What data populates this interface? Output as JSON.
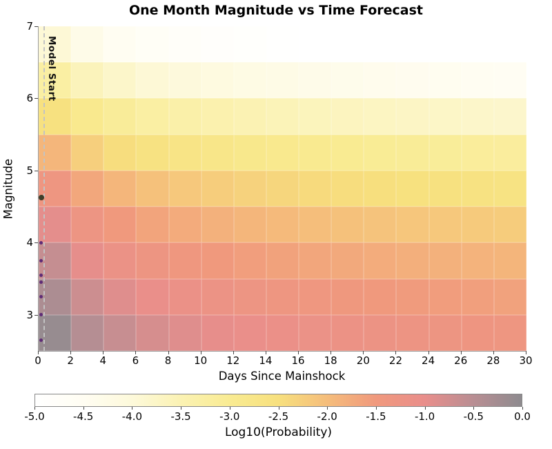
{
  "chart_data": {
    "type": "heatmap",
    "title": "One Month Magnitude vs Time Forecast",
    "xlabel": "Days Since Mainshock",
    "ylabel": "Magnitude",
    "colorbar_label": "Log10(Probability)",
    "x_range": [
      0,
      30
    ],
    "y_range": [
      2.5,
      7
    ],
    "x_tick_labels": [
      "0",
      "2",
      "4",
      "6",
      "8",
      "10",
      "12",
      "14",
      "16",
      "18",
      "20",
      "22",
      "24",
      "26",
      "28",
      "30"
    ],
    "y_tick_labels": [
      "3",
      "4",
      "5",
      "6",
      "7"
    ],
    "y_tick_values": [
      3,
      4,
      5,
      6,
      7
    ],
    "day_edges": [
      0,
      2,
      4,
      6,
      8,
      10,
      12,
      14,
      16,
      18,
      20,
      22,
      24,
      26,
      28,
      30
    ],
    "magnitude_edges": [
      2.5,
      3.0,
      3.5,
      4.0,
      4.5,
      5.0,
      5.5,
      6.0,
      6.5,
      7.0
    ],
    "rows_bottom_to_top": [
      {
        "mag_range": [
          2.5,
          3.0
        ],
        "values": [
          -0.1,
          -0.45,
          -0.65,
          -0.8,
          -0.9,
          -0.98,
          -1.05,
          -1.11,
          -1.16,
          -1.2,
          -1.24,
          -1.28,
          -1.31,
          -1.34,
          -1.37
        ]
      },
      {
        "mag_range": [
          3.0,
          3.5
        ],
        "values": [
          -0.35,
          -0.7,
          -0.9,
          -1.05,
          -1.15,
          -1.23,
          -1.3,
          -1.36,
          -1.41,
          -1.45,
          -1.49,
          -1.53,
          -1.56,
          -1.59,
          -1.62
        ]
      },
      {
        "mag_range": [
          3.5,
          4.0
        ],
        "values": [
          -0.62,
          -0.97,
          -1.17,
          -1.32,
          -1.42,
          -1.5,
          -1.57,
          -1.63,
          -1.68,
          -1.72,
          -1.76,
          -1.8,
          -1.83,
          -1.86,
          -1.89
        ]
      },
      {
        "mag_range": [
          4.0,
          4.5
        ],
        "values": [
          -0.95,
          -1.3,
          -1.5,
          -1.65,
          -1.75,
          -1.83,
          -1.9,
          -1.96,
          -2.01,
          -2.05,
          -2.09,
          -2.13,
          -2.16,
          -2.19,
          -2.22
        ]
      },
      {
        "mag_range": [
          4.5,
          5.0
        ],
        "values": [
          -1.35,
          -1.7,
          -1.9,
          -2.05,
          -2.15,
          -2.23,
          -2.3,
          -2.36,
          -2.41,
          -2.45,
          -2.49,
          -2.53,
          -2.56,
          -2.59,
          -2.62
        ]
      },
      {
        "mag_range": [
          5.0,
          5.5
        ],
        "values": [
          -1.9,
          -2.25,
          -2.45,
          -2.6,
          -2.7,
          -2.78,
          -2.85,
          -2.91,
          -2.96,
          -3.0,
          -3.04,
          -3.08,
          -3.11,
          -3.14,
          -3.17
        ]
      },
      {
        "mag_range": [
          5.5,
          6.0
        ],
        "values": [
          -2.55,
          -2.9,
          -3.1,
          -3.25,
          -3.35,
          -3.43,
          -3.5,
          -3.56,
          -3.61,
          -3.65,
          -3.69,
          -3.73,
          -3.76,
          -3.79,
          -3.82
        ]
      },
      {
        "mag_range": [
          6.0,
          6.5
        ],
        "values": [
          -3.25,
          -3.6,
          -3.8,
          -3.95,
          -4.05,
          -4.13,
          -4.2,
          -4.26,
          -4.31,
          -4.35,
          -4.39,
          -4.43,
          -4.46,
          -4.49,
          -4.52
        ]
      },
      {
        "mag_range": [
          6.5,
          7.0
        ],
        "values": [
          -3.95,
          -4.3,
          -4.5,
          -4.65,
          -4.75,
          -4.83,
          -4.9,
          -4.96,
          -5.0,
          -5.0,
          -5.0,
          -5.0,
          -5.0,
          -5.0,
          -5.0
        ]
      }
    ],
    "colormap": [
      {
        "value": -5.0,
        "color": "#ffffff"
      },
      {
        "value": -4.5,
        "color": "#fffdf2"
      },
      {
        "value": -4.0,
        "color": "#fdf9da"
      },
      {
        "value": -3.5,
        "color": "#fbf2b3"
      },
      {
        "value": -3.0,
        "color": "#f9eb92"
      },
      {
        "value": -2.5,
        "color": "#f7e07e"
      },
      {
        "value": -2.0,
        "color": "#f5bd7b"
      },
      {
        "value": -1.5,
        "color": "#f0997d"
      },
      {
        "value": -1.0,
        "color": "#e98e8b"
      },
      {
        "value": -0.5,
        "color": "#b98e93"
      },
      {
        "value": 0.0,
        "color": "#8e8b8f"
      }
    ],
    "colorbar_range": [
      -5,
      0
    ],
    "colorbar_tick_labels": [
      "-5.0",
      "-4.5",
      "-4.0",
      "-3.5",
      "-3.0",
      "-2.5",
      "-2.0",
      "-1.5",
      "-1.0",
      "-0.5",
      "0.0"
    ],
    "model_start": {
      "label": "Model Start",
      "day": 0.3,
      "line_color": "#c3c3c3"
    },
    "events": {
      "mainshock": {
        "day": 0.15,
        "magnitude": 4.63,
        "color": "#3f3d28",
        "size": 8
      },
      "aftershocks": {
        "day": 0.15,
        "magnitudes": [
          4.0,
          3.75,
          3.55,
          3.45,
          3.25,
          3.0,
          2.65
        ],
        "color": "#5e2b76",
        "size": 5
      }
    }
  }
}
